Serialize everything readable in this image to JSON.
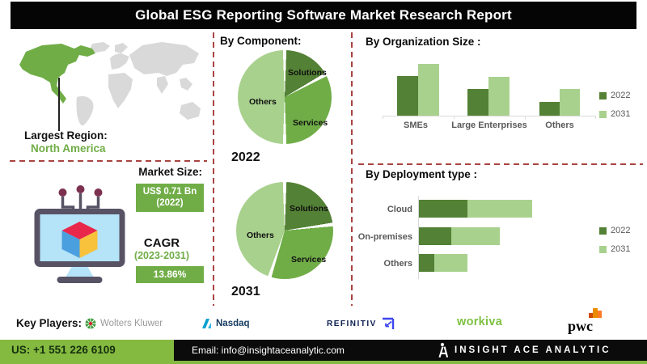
{
  "title": "Global ESG Reporting Software Market Research Report",
  "region": {
    "label": "Largest Region:",
    "value": "North America"
  },
  "market": {
    "size_label": "Market Size:",
    "size_value": "US$ 0.71 Bn",
    "size_year": "(2022)",
    "cagr_label": "CAGR",
    "cagr_period": "(2023-2031)",
    "cagr_value": "13.86%"
  },
  "key_players": {
    "label": "Key Players:",
    "players": [
      "Wolters Kluwer",
      "Nasdaq",
      "REFINITIV",
      "workiva",
      "pwc"
    ]
  },
  "footer": {
    "phone": "US: +1 551 226 6109",
    "email": "Email: info@insightaceanalytic.com",
    "brand": "INSIGHT ACE ANALYTIC"
  },
  "colors": {
    "green_dark": "#538135",
    "green_mid": "#70ad47",
    "green_light": "#a9d18e",
    "dashed_line": "#a94442",
    "footer_green": "#85ba40",
    "map_gray": "#d9d9d9",
    "map_highlight": "#70ad47",
    "title_bg": "#000000"
  },
  "chart_data": [
    {
      "type": "pie",
      "title": "By Component:",
      "year": "2022",
      "labels": [
        "Solutions",
        "Services",
        "Others"
      ],
      "values": [
        17,
        33,
        50
      ],
      "colors": [
        "#538135",
        "#70ad47",
        "#a9d18e"
      ],
      "values_unit": "percent-estimated"
    },
    {
      "type": "pie",
      "title": "By Component:",
      "year": "2031",
      "labels": [
        "Solutions",
        "Services",
        "Others"
      ],
      "values": [
        23,
        32,
        45
      ],
      "colors": [
        "#538135",
        "#70ad47",
        "#a9d18e"
      ],
      "values_unit": "percent-estimated"
    },
    {
      "type": "bar",
      "title": "By Organization Size :",
      "categories": [
        "SMEs",
        "Large Enterprises",
        "Others"
      ],
      "series": [
        {
          "name": "2022",
          "values": [
            49,
            33,
            17
          ]
        },
        {
          "name": "2031",
          "values": [
            64,
            48,
            33
          ]
        }
      ],
      "values_unit": "relative (no axis labels shown)",
      "legend_position": "right",
      "grid": false
    },
    {
      "type": "bar-horizontal-stacked",
      "title": "By Deployment type :",
      "categories": [
        "Cloud",
        "On-premises",
        "Others"
      ],
      "series": [
        {
          "name": "2022",
          "values": [
            60,
            40,
            19
          ]
        },
        {
          "name": "2031",
          "values": [
            80,
            60,
            41
          ]
        }
      ],
      "values_unit": "relative (no axis labels shown)",
      "legend_position": "right",
      "grid": false
    }
  ]
}
